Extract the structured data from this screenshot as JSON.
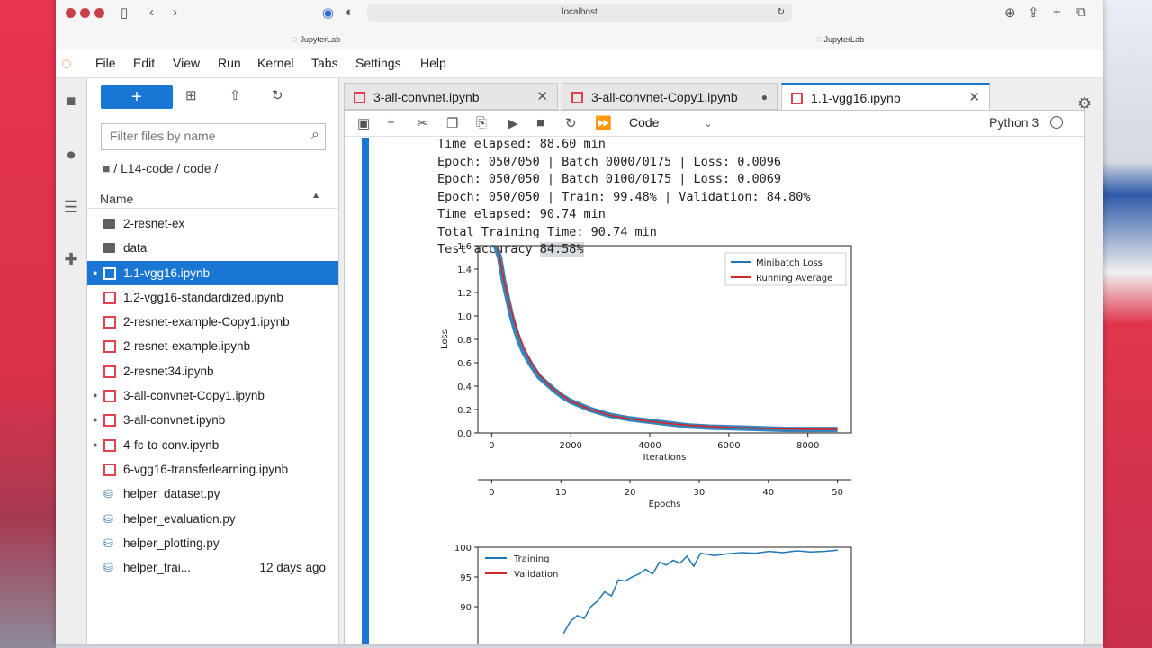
{
  "browser": {
    "url": "localhost",
    "tabs": [
      "JupyterLab",
      "JupyterLab"
    ]
  },
  "menubar": {
    "items": [
      "File",
      "Edit",
      "View",
      "Run",
      "Kernel",
      "Tabs",
      "Settings",
      "Help"
    ]
  },
  "filebrowser": {
    "new_label": "+",
    "filter_placeholder": "Filter files by name",
    "breadcrumb": "/ L14-code / code /",
    "column_name": "Name",
    "files": [
      {
        "name": "2-resnet-ex",
        "type": "folder",
        "running": false,
        "modified": ""
      },
      {
        "name": "data",
        "type": "folder",
        "running": false,
        "modified": ""
      },
      {
        "name": "1.1-vgg16.ipynb",
        "type": "notebook",
        "running": true,
        "selected": true,
        "modified": ""
      },
      {
        "name": "1.2-vgg16-standardized.ipynb",
        "type": "notebook",
        "running": false,
        "modified": ""
      },
      {
        "name": "2-resnet-example-Copy1.ipynb",
        "type": "notebook",
        "running": false,
        "modified": ""
      },
      {
        "name": "2-resnet-example.ipynb",
        "type": "notebook",
        "running": false,
        "modified": ""
      },
      {
        "name": "2-resnet34.ipynb",
        "type": "notebook",
        "running": false,
        "modified": ""
      },
      {
        "name": "3-all-convnet-Copy1.ipynb",
        "type": "notebook",
        "running": true,
        "modified": ""
      },
      {
        "name": "3-all-convnet.ipynb",
        "type": "notebook",
        "running": true,
        "modified": ""
      },
      {
        "name": "4-fc-to-conv.ipynb",
        "type": "notebook",
        "running": true,
        "modified": ""
      },
      {
        "name": "6-vgg16-transferlearning.ipynb",
        "type": "notebook",
        "running": false,
        "modified": ""
      },
      {
        "name": "helper_dataset.py",
        "type": "python",
        "running": false,
        "modified": ""
      },
      {
        "name": "helper_evaluation.py",
        "type": "python",
        "running": false,
        "modified": ""
      },
      {
        "name": "helper_plotting.py",
        "type": "python",
        "running": false,
        "modified": ""
      },
      {
        "name": "helper_trai...",
        "type": "python",
        "running": false,
        "modified": "12 days ago"
      }
    ]
  },
  "notebook_tabs": [
    {
      "label": "3-all-convnet.ipynb",
      "status": "close",
      "active": false
    },
    {
      "label": "3-all-convnet-Copy1.ipynb",
      "status": "dirty",
      "active": false
    },
    {
      "label": "1.1-vgg16.ipynb",
      "status": "close",
      "active": true
    }
  ],
  "toolbar": {
    "cell_type": "Code",
    "kernel_name": "Python 3"
  },
  "output": {
    "lines": [
      "Time elapsed: 88.60 min",
      "Epoch: 050/050 | Batch 0000/0175 | Loss: 0.0096",
      "Epoch: 050/050 | Batch 0100/0175 | Loss: 0.0069",
      "Epoch: 050/050 | Train: 99.48% | Validation: 84.80%",
      "Time elapsed: 90.74 min",
      "Total Training Time: 90.74 min"
    ],
    "test_prefix": "Test accuracy ",
    "test_value": "84.58%"
  },
  "chart_data": [
    {
      "type": "line",
      "xlabel": "Iterations",
      "ylabel": "Loss",
      "secondary_xlabel": "Epochs",
      "xlim": [
        -350,
        9100
      ],
      "ylim": [
        0,
        1.6
      ],
      "xticks": [
        0,
        2000,
        4000,
        6000,
        8000
      ],
      "yticks": [
        0.0,
        0.2,
        0.4,
        0.6,
        0.8,
        1.0,
        1.2,
        1.4,
        1.6
      ],
      "secondary_xticks": [
        0,
        10,
        20,
        30,
        40,
        50
      ],
      "legend_position": "top-right",
      "series": [
        {
          "name": "Minibatch Loss",
          "color": "#1f77b4",
          "x": [
            100,
            200,
            300,
            400,
            500,
            600,
            700,
            800,
            1000,
            1200,
            1400,
            1600,
            1800,
            2000,
            2500,
            3000,
            3500,
            4000,
            4500,
            5000,
            5500,
            6000,
            6500,
            7000,
            7500,
            8000,
            8750
          ],
          "y": [
            1.6,
            1.5,
            1.3,
            1.15,
            1.0,
            0.88,
            0.78,
            0.7,
            0.58,
            0.48,
            0.42,
            0.36,
            0.31,
            0.27,
            0.2,
            0.15,
            0.12,
            0.1,
            0.08,
            0.06,
            0.05,
            0.045,
            0.04,
            0.035,
            0.03,
            0.03,
            0.03
          ]
        },
        {
          "name": "Running Average",
          "color": "#d62728",
          "x": [
            150,
            300,
            450,
            600,
            800,
            1000,
            1200,
            1500,
            2000,
            2500,
            3000,
            3500,
            4000,
            4500,
            5000,
            6000,
            7000,
            8000,
            8750
          ],
          "y": [
            1.6,
            1.32,
            1.1,
            0.92,
            0.74,
            0.6,
            0.5,
            0.39,
            0.27,
            0.2,
            0.15,
            0.12,
            0.1,
            0.08,
            0.065,
            0.048,
            0.038,
            0.032,
            0.03
          ]
        }
      ]
    },
    {
      "type": "line",
      "xlabel": "",
      "ylabel": "",
      "ylim": [
        85,
        100
      ],
      "yticks": [
        90,
        95,
        100
      ],
      "legend_position": "top-left",
      "series": [
        {
          "name": "Training",
          "color": "#1f77b4",
          "x": [
            10,
            11,
            12,
            13,
            14,
            15,
            16,
            17,
            18,
            19,
            20,
            21,
            22,
            23,
            24,
            25,
            26,
            27,
            28,
            29,
            30,
            32,
            34,
            36,
            38,
            40,
            42,
            44,
            46,
            48,
            50
          ],
          "y": [
            85.5,
            87.5,
            88.5,
            88.0,
            90.0,
            91.0,
            92.5,
            91.8,
            94.5,
            94.3,
            95.0,
            95.5,
            96.3,
            95.5,
            97.5,
            97.0,
            97.8,
            97.3,
            98.5,
            96.8,
            99.0,
            98.6,
            98.9,
            99.1,
            99.0,
            99.3,
            99.1,
            99.4,
            99.2,
            99.3,
            99.5
          ]
        },
        {
          "name": "Validation",
          "color": "#d62728",
          "x": [],
          "y": []
        }
      ]
    }
  ]
}
